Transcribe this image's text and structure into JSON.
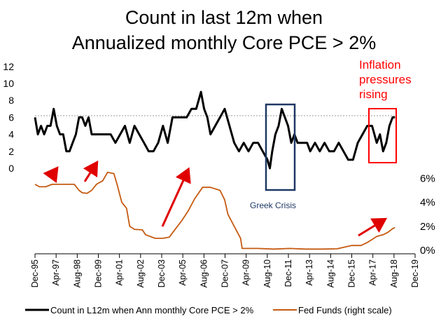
{
  "chart_data": {
    "type": "line",
    "title_line1": "Count in last 12m when",
    "title_line2": "Annualized monthly Core PCE > 2%",
    "left_axis": {
      "ticks": [
        0,
        2,
        4,
        6,
        8,
        10,
        12
      ],
      "ylim": [
        0,
        12
      ]
    },
    "right_axis": {
      "ticks": [
        "0%",
        "2%",
        "4%",
        "6%"
      ],
      "values": [
        0,
        2,
        4,
        6
      ],
      "ylim": [
        0,
        6
      ]
    },
    "x_ticks": [
      "Dec-95",
      "Apr-97",
      "Aug-98",
      "Dec-99",
      "Apr-01",
      "Aug-02",
      "Dec-03",
      "Apr-05",
      "Aug-06",
      "Dec-07",
      "Apr-09",
      "Aug-10",
      "Dec-11",
      "Apr-13",
      "Aug-14",
      "Dec-15",
      "Apr-17",
      "Aug-18",
      "Dec-19"
    ],
    "reference_line": {
      "axis": "left",
      "value": 6.2
    },
    "series": [
      {
        "name": "Count in L12m when Ann monthly Core PCE > 2%",
        "axis": "left",
        "color": "#000000",
        "x": [
          1995.92,
          1996.1,
          1996.3,
          1996.5,
          1996.7,
          1996.9,
          1997.1,
          1997.3,
          1997.5,
          1997.7,
          1997.9,
          1998.1,
          1998.3,
          1998.5,
          1998.7,
          1998.9,
          1999.1,
          1999.3,
          1999.5,
          1999.7,
          1999.9,
          2000.1,
          2000.4,
          2000.7,
          2001.0,
          2001.3,
          2001.6,
          2001.9,
          2002.2,
          2002.5,
          2002.8,
          2003.1,
          2003.4,
          2003.7,
          2004.0,
          2004.3,
          2004.6,
          2004.9,
          2005.2,
          2005.5,
          2005.8,
          2006.1,
          2006.4,
          2006.6,
          2006.8,
          2007.0,
          2007.3,
          2007.6,
          2007.9,
          2008.2,
          2008.5,
          2008.8,
          2009.1,
          2009.4,
          2009.7,
          2010.0,
          2010.3,
          2010.6,
          2010.75,
          2010.9,
          2011.1,
          2011.3,
          2011.5,
          2011.7,
          2011.9,
          2012.1,
          2012.3,
          2012.5,
          2012.7,
          2012.9,
          2013.1,
          2013.3,
          2013.6,
          2013.9,
          2014.2,
          2014.5,
          2014.8,
          2015.1,
          2015.4,
          2015.7,
          2016.0,
          2016.3,
          2016.6,
          2016.9,
          2017.2,
          2017.5,
          2017.7,
          2017.9,
          2018.1,
          2018.3,
          2018.5,
          2018.65
        ],
        "values": [
          6,
          4,
          5,
          4,
          5,
          5,
          7,
          5,
          4,
          4,
          2,
          2,
          3,
          4,
          6,
          6,
          5,
          6,
          4,
          4,
          4,
          4,
          4,
          4,
          3,
          4,
          5,
          3,
          5,
          4,
          3,
          2,
          2,
          3,
          5,
          3,
          6,
          6,
          6,
          6,
          7,
          7,
          9,
          7,
          6,
          4,
          5,
          6,
          7,
          5,
          3,
          2,
          3,
          2,
          3,
          3,
          2,
          1,
          0,
          2,
          4,
          5,
          7,
          6,
          5,
          3,
          4,
          3,
          3,
          3,
          3,
          2,
          3,
          2,
          3,
          2,
          2,
          3,
          2,
          1,
          1,
          3,
          4,
          5,
          5,
          3,
          4,
          2,
          3,
          5,
          6,
          6
        ]
      },
      {
        "name": "Fed Funds (right scale)",
        "axis": "right",
        "color": "#c55a11",
        "x": [
          1995.92,
          1996.2,
          1996.6,
          1997.0,
          1997.3,
          1997.6,
          1998.0,
          1998.4,
          1998.7,
          1998.9,
          1999.2,
          1999.5,
          1999.8,
          2000.2,
          2000.5,
          2000.9,
          2001.1,
          2001.4,
          2001.7,
          2001.9,
          2002.2,
          2002.7,
          2002.9,
          2003.5,
          2004.0,
          2004.4,
          2004.8,
          2005.2,
          2005.6,
          2006.0,
          2006.5,
          2007.0,
          2007.6,
          2007.9,
          2008.1,
          2008.5,
          2008.9,
          2009.0,
          2010.0,
          2011.0,
          2012.0,
          2013.0,
          2014.0,
          2015.0,
          2015.9,
          2016.5,
          2016.9,
          2017.2,
          2017.5,
          2017.9,
          2018.2,
          2018.5,
          2018.65
        ],
        "values": [
          5.5,
          5.3,
          5.3,
          5.5,
          5.5,
          5.5,
          5.5,
          5.5,
          5.0,
          4.8,
          4.75,
          5.0,
          5.5,
          5.8,
          6.5,
          6.4,
          5.5,
          4.0,
          3.5,
          2.0,
          1.75,
          1.7,
          1.3,
          1.0,
          1.0,
          1.1,
          1.8,
          2.5,
          3.3,
          4.3,
          5.25,
          5.25,
          5.0,
          4.2,
          3.0,
          2.0,
          1.0,
          0.15,
          0.15,
          0.1,
          0.15,
          0.1,
          0.1,
          0.12,
          0.4,
          0.4,
          0.65,
          0.9,
          1.15,
          1.3,
          1.5,
          1.8,
          1.9
        ]
      }
    ],
    "annotations": {
      "inflation_line1": "Inflation",
      "inflation_line2": "pressures",
      "inflation_line3": "rising",
      "greek_crisis": "Greek Crisis"
    },
    "legend": {
      "position": "bottom"
    }
  }
}
